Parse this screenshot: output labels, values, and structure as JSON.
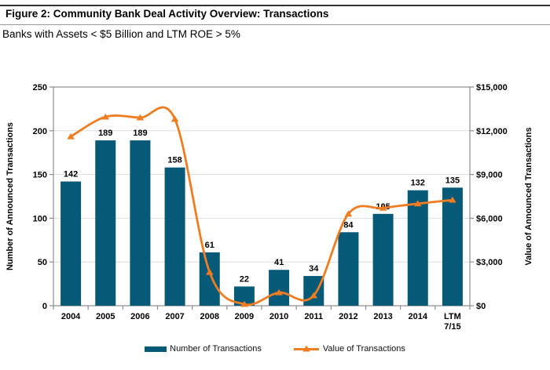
{
  "header": {
    "title": "Figure 2: Community Bank Deal Activity Overview: Transactions",
    "subtitle": "Banks with Assets < $5 Billion and LTM ROE > 5%"
  },
  "chart_data": {
    "type": "combo",
    "categories": [
      "2004",
      "2005",
      "2006",
      "2007",
      "2008",
      "2009",
      "2010",
      "2011",
      "2012",
      "2013",
      "2014",
      "LTM 7/15"
    ],
    "series": [
      {
        "name": "Number of Transactions",
        "type": "bar",
        "axis": "left",
        "color": "#065A78",
        "data_labels": true,
        "values": [
          142,
          189,
          189,
          158,
          61,
          22,
          41,
          34,
          84,
          105,
          132,
          135
        ]
      },
      {
        "name": "Value of Transactions",
        "type": "line",
        "axis": "right",
        "color": "#F07D22",
        "marker": "triangle",
        "smooth": true,
        "values": [
          11600,
          12950,
          12900,
          12800,
          2300,
          100,
          900,
          700,
          6300,
          6700,
          7000,
          7250
        ]
      }
    ],
    "left_axis": {
      "title": "Number of Announced Transactions",
      "min": 0,
      "max": 250,
      "step": 50,
      "tick_labels": [
        "0",
        "50",
        "100",
        "150",
        "200",
        "250"
      ]
    },
    "right_axis": {
      "title": "Value of Announced Transactions",
      "min": 0,
      "max": 15000,
      "step": 3000,
      "tick_labels": [
        "$0",
        "$3,000",
        "$6,000",
        "$9,000",
        "$12,000",
        "$15,000"
      ]
    },
    "legend_position": "bottom",
    "grid": true,
    "colors": {
      "gridline": "#DDDDDD",
      "axis_line": "#8C8C8C",
      "label_text": "#000000"
    }
  }
}
